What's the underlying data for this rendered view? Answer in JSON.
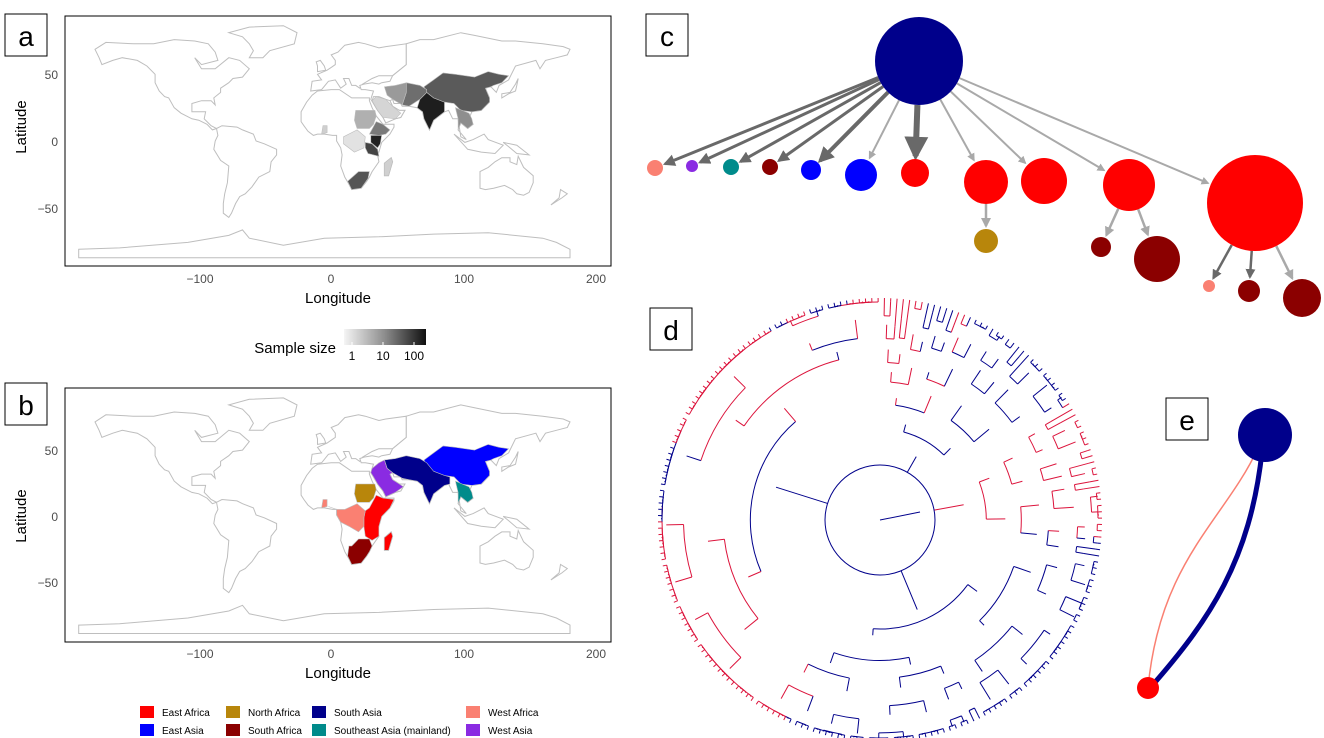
{
  "panels": {
    "a": {
      "label": "a",
      "map_ylabel": "Latitude",
      "map_xlabel": "Longitude",
      "xticks": [
        "−100",
        "0",
        "100",
        "200"
      ],
      "yticks": [
        "50",
        "0",
        "−50"
      ],
      "legend_title": "Sample size",
      "legend_ticks": [
        "1",
        "10",
        "100"
      ]
    },
    "b": {
      "label": "b",
      "map_ylabel": "Latitude",
      "map_xlabel": "Longitude",
      "xticks": [
        "−100",
        "0",
        "100",
        "200"
      ],
      "yticks": [
        "50",
        "0",
        "−50"
      ]
    },
    "c": {
      "label": "c"
    },
    "d": {
      "label": "d"
    },
    "e": {
      "label": "e"
    }
  },
  "colors": {
    "east_africa": "#ff0000",
    "east_asia": "#0000ff",
    "north_africa": "#b8860b",
    "south_africa": "#8b0000",
    "south_asia": "#00008b",
    "southeast_asia": "#008b8b",
    "west_africa": "#fa8072",
    "west_asia": "#8a2be2",
    "tree_blue": "#00008b",
    "tree_red": "#dc143c",
    "land": "#ffffff",
    "border": "#bebebe",
    "arrow_dark": "#696969",
    "arrow_light": "#a9a9a9"
  },
  "region_legend": [
    {
      "name": "East Africa",
      "color": "#ff0000"
    },
    {
      "name": "East Asia",
      "color": "#0000ff"
    },
    {
      "name": "North Africa",
      "color": "#b8860b"
    },
    {
      "name": "South Africa",
      "color": "#8b0000"
    },
    {
      "name": "South Asia",
      "color": "#00008b"
    },
    {
      "name": "Southeast Asia (mainland)",
      "color": "#008b8b"
    },
    {
      "name": "West Africa",
      "color": "#fa8072"
    },
    {
      "name": "West Asia",
      "color": "#8a2be2"
    }
  ],
  "chart_data": [
    {
      "type": "heatmap",
      "panel": "a",
      "xlabel": "Longitude",
      "ylabel": "Latitude",
      "xlim": [
        -190,
        210
      ],
      "ylim": [
        -90,
        90
      ],
      "legend_title": "Sample size",
      "legend_scale": "log",
      "legend_ticks": [
        1,
        10,
        100
      ]
    },
    {
      "type": "heatmap",
      "panel": "b",
      "xlabel": "Longitude",
      "ylabel": "Latitude",
      "xlim": [
        -190,
        210
      ],
      "ylim": [
        -90,
        90
      ],
      "legend": [
        "East Africa",
        "East Asia",
        "North Africa",
        "South Africa",
        "South Asia",
        "Southeast Asia (mainland)",
        "West Africa",
        "West Asia"
      ]
    }
  ]
}
